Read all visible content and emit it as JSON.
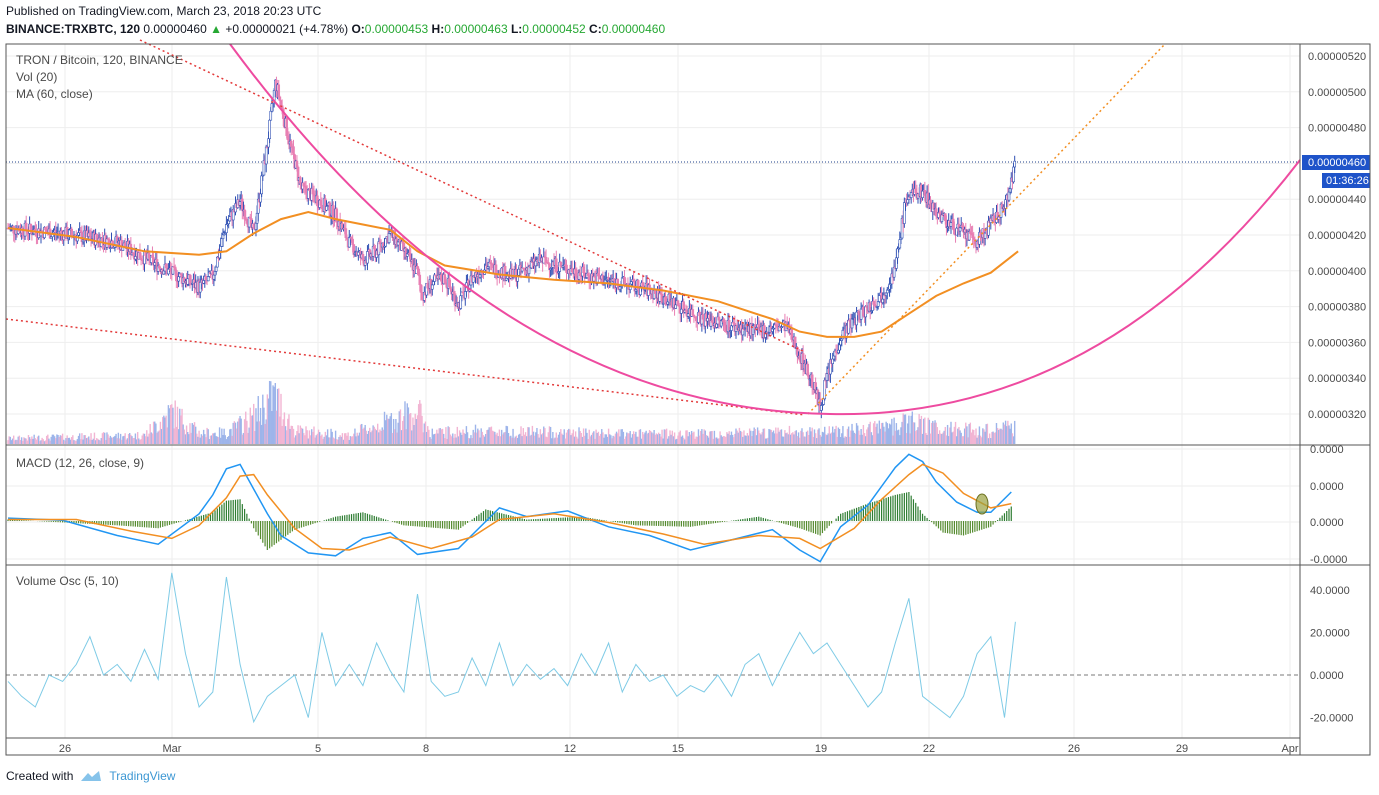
{
  "header": {
    "published": "Published on TradingView.com, March 23, 2018 20:23 UTC",
    "symbol": "BINANCE:TRXBTC, 120",
    "last": "0.00000460",
    "arrow": "▲",
    "change": "+0.00000021 (+4.78%)",
    "o_label": "O:",
    "o_value": "0.00000453",
    "h_label": "H:",
    "h_value": "0.00000463",
    "l_label": "L:",
    "l_value": "0.00000452",
    "c_label": "C:",
    "c_value": "0.00000460"
  },
  "footer": {
    "created_with": "Created with",
    "brand": "TradingView"
  },
  "chart_data": [
    {
      "type": "candlestick",
      "title": "TRON / Bitcoin, 120, BINANCE",
      "legend": [
        "Vol (20)",
        "MA (60, close)"
      ],
      "y_ticks": [
        "0.00000520",
        "0.00000500",
        "0.00000480",
        "0.00000460",
        "0.00000440",
        "0.00000420",
        "0.00000400",
        "0.00000380",
        "0.00000360",
        "0.00000340",
        "0.00000320"
      ],
      "ylim": [
        3.06e-06,
        5.28e-06
      ],
      "x_ticks": [
        "26",
        "Mar",
        "5",
        "8",
        "12",
        "15",
        "19",
        "22",
        "26",
        "29",
        "Apr"
      ],
      "price_label": "0.00000460",
      "countdown_label": "01:36:26",
      "last_price": 4.6e-06,
      "price_path": [
        [
          0,
          423
        ],
        [
          4,
          420
        ],
        [
          8,
          415
        ],
        [
          11,
          402
        ],
        [
          14,
          390
        ],
        [
          15,
          396
        ],
        [
          16,
          425
        ],
        [
          17,
          438
        ],
        [
          18,
          420
        ],
        [
          19,
          470
        ],
        [
          19.6,
          505
        ],
        [
          20.5,
          475
        ],
        [
          21.5,
          445
        ],
        [
          22.5,
          440
        ],
        [
          24,
          430
        ],
        [
          25,
          415
        ],
        [
          26,
          405
        ],
        [
          27,
          410
        ],
        [
          28,
          420
        ],
        [
          29,
          410
        ],
        [
          30,
          398
        ],
        [
          30.3,
          385
        ],
        [
          31,
          392
        ],
        [
          32,
          395
        ],
        [
          33,
          380
        ],
        [
          34,
          395
        ],
        [
          35,
          402
        ],
        [
          37,
          396
        ],
        [
          39,
          405
        ],
        [
          41,
          400
        ],
        [
          43,
          395
        ],
        [
          45,
          392
        ],
        [
          47,
          388
        ],
        [
          49,
          380
        ],
        [
          51,
          372
        ],
        [
          53,
          368
        ],
        [
          55,
          365
        ],
        [
          57,
          368
        ],
        [
          58,
          352
        ],
        [
          59,
          335
        ],
        [
          59.5,
          322
        ],
        [
          60,
          340
        ],
        [
          61,
          362
        ],
        [
          62,
          372
        ],
        [
          64,
          385
        ],
        [
          65,
          400
        ],
        [
          65.8,
          440
        ],
        [
          67,
          444
        ],
        [
          68,
          432
        ],
        [
          69,
          425
        ],
        [
          70,
          420
        ],
        [
          71,
          415
        ],
        [
          72,
          425
        ],
        [
          73,
          435
        ],
        [
          73.8,
          458
        ]
      ],
      "ma60_path": [
        [
          0,
          423
        ],
        [
          5,
          418
        ],
        [
          10,
          410
        ],
        [
          14,
          408
        ],
        [
          16,
          410
        ],
        [
          18,
          420
        ],
        [
          20,
          428
        ],
        [
          22,
          432
        ],
        [
          24,
          428
        ],
        [
          26,
          425
        ],
        [
          28,
          422
        ],
        [
          30,
          410
        ],
        [
          32,
          402
        ],
        [
          36,
          397
        ],
        [
          40,
          394
        ],
        [
          44,
          392
        ],
        [
          48,
          388
        ],
        [
          52,
          382
        ],
        [
          56,
          372
        ],
        [
          58,
          365
        ],
        [
          60,
          362
        ],
        [
          62,
          362
        ],
        [
          64,
          365
        ],
        [
          66,
          375
        ],
        [
          68,
          385
        ],
        [
          70,
          392
        ],
        [
          72,
          398
        ],
        [
          74,
          410
        ]
      ],
      "volume_path": [
        [
          0,
          0.5
        ],
        [
          10,
          0.8
        ],
        [
          12,
          3
        ],
        [
          14,
          1
        ],
        [
          16,
          1
        ],
        [
          18,
          2.5
        ],
        [
          19.5,
          4.5
        ],
        [
          21,
          1.2
        ],
        [
          25,
          0.8
        ],
        [
          30,
          3
        ],
        [
          31,
          1
        ],
        [
          35,
          1.2
        ],
        [
          45,
          0.9
        ],
        [
          55,
          1
        ],
        [
          60,
          1.2
        ],
        [
          63,
          1.3
        ],
        [
          66,
          2
        ],
        [
          68,
          1.5
        ],
        [
          72,
          1.2
        ],
        [
          74,
          1.6
        ]
      ]
    },
    {
      "type": "line",
      "title": "MACD (12, 26, close, 9)",
      "y_ticks": [
        "0.0000",
        "0.0000",
        "0.0000",
        "-0.0000"
      ],
      "macd": [
        [
          0,
          0.2
        ],
        [
          4,
          0.05
        ],
        [
          8,
          -1
        ],
        [
          11,
          -1.6
        ],
        [
          14,
          0.5
        ],
        [
          15,
          1.8
        ],
        [
          16,
          3.6
        ],
        [
          17,
          3.9
        ],
        [
          18,
          2.2
        ],
        [
          19,
          0.5
        ],
        [
          20,
          -1
        ],
        [
          22,
          -2.2
        ],
        [
          24,
          -2.4
        ],
        [
          26,
          -1.2
        ],
        [
          28,
          -0.8
        ],
        [
          30,
          -2.3
        ],
        [
          33,
          -1.9
        ],
        [
          36,
          0.9
        ],
        [
          38,
          0.3
        ],
        [
          41,
          0.7
        ],
        [
          44,
          -0.4
        ],
        [
          47,
          -1
        ],
        [
          50,
          -2
        ],
        [
          53,
          -1.3
        ],
        [
          56,
          -0.6
        ],
        [
          58,
          -2
        ],
        [
          59.5,
          -2.8
        ],
        [
          61,
          -0.4
        ],
        [
          63,
          1.1
        ],
        [
          65,
          3.7
        ],
        [
          66,
          4.6
        ],
        [
          67,
          4.1
        ],
        [
          68,
          2.7
        ],
        [
          69.5,
          1.3
        ],
        [
          71,
          0.6
        ],
        [
          72,
          0.6
        ],
        [
          73.5,
          2
        ]
      ],
      "signal": [
        [
          0,
          0.1
        ],
        [
          5,
          0.1
        ],
        [
          9,
          -0.7
        ],
        [
          12,
          -1.2
        ],
        [
          14,
          -0.3
        ],
        [
          16,
          1.6
        ],
        [
          17,
          3.1
        ],
        [
          18,
          3.2
        ],
        [
          19,
          1.8
        ],
        [
          21,
          -0.5
        ],
        [
          23,
          -1.9
        ],
        [
          25,
          -2
        ],
        [
          28,
          -1.1
        ],
        [
          31,
          -1.9
        ],
        [
          34,
          -1.1
        ],
        [
          36,
          0.1
        ],
        [
          40,
          0.5
        ],
        [
          44,
          -0.1
        ],
        [
          48,
          -0.9
        ],
        [
          51,
          -1.6
        ],
        [
          55,
          -1
        ],
        [
          58,
          -1.2
        ],
        [
          59.5,
          -1.9
        ],
        [
          62,
          -0.5
        ],
        [
          64,
          1.5
        ],
        [
          66,
          3.2
        ],
        [
          67,
          3.9
        ],
        [
          68.5,
          3.3
        ],
        [
          70,
          1.9
        ],
        [
          72,
          0.9
        ],
        [
          73.5,
          1.2
        ]
      ],
      "histogram": [
        [
          0,
          0.1
        ],
        [
          8,
          -0.3
        ],
        [
          11,
          -0.5
        ],
        [
          15,
          0.6
        ],
        [
          16,
          1.4
        ],
        [
          17,
          1.5
        ],
        [
          18,
          -0.5
        ],
        [
          19,
          -2
        ],
        [
          21,
          -0.6
        ],
        [
          24,
          0.3
        ],
        [
          26,
          0.6
        ],
        [
          29,
          -0.3
        ],
        [
          33,
          -0.6
        ],
        [
          35,
          0.8
        ],
        [
          38,
          0.1
        ],
        [
          42,
          0.3
        ],
        [
          46,
          -0.3
        ],
        [
          50,
          -0.4
        ],
        [
          55,
          0.3
        ],
        [
          58,
          -0.5
        ],
        [
          59.5,
          -1
        ],
        [
          61,
          0.5
        ],
        [
          63,
          1.2
        ],
        [
          65,
          1.8
        ],
        [
          66,
          2
        ],
        [
          67,
          0.5
        ],
        [
          68.5,
          -0.8
        ],
        [
          70,
          -1
        ],
        [
          72,
          -0.4
        ],
        [
          73.5,
          1
        ]
      ]
    },
    {
      "type": "line",
      "title": "Volume Osc (5, 10)",
      "y_ticks": [
        "40.0000",
        "20.0000",
        "0.0000",
        "-20.0000"
      ],
      "ylim": [
        -25,
        48
      ],
      "values": [
        [
          0,
          -3
        ],
        [
          1,
          -10
        ],
        [
          2,
          -15
        ],
        [
          3,
          0
        ],
        [
          4,
          -3
        ],
        [
          5,
          5
        ],
        [
          6,
          18
        ],
        [
          7,
          0
        ],
        [
          8,
          5
        ],
        [
          9,
          -3
        ],
        [
          10,
          12
        ],
        [
          11,
          -2
        ],
        [
          12,
          48
        ],
        [
          13,
          10
        ],
        [
          14,
          -15
        ],
        [
          15,
          -8
        ],
        [
          16,
          46
        ],
        [
          17,
          5
        ],
        [
          18,
          -22
        ],
        [
          19,
          -10
        ],
        [
          20,
          -5
        ],
        [
          21,
          0
        ],
        [
          22,
          -20
        ],
        [
          23,
          20
        ],
        [
          24,
          -5
        ],
        [
          25,
          5
        ],
        [
          26,
          -5
        ],
        [
          27,
          15
        ],
        [
          28,
          2
        ],
        [
          29,
          -8
        ],
        [
          30,
          38
        ],
        [
          31,
          -3
        ],
        [
          32,
          -10
        ],
        [
          33,
          -8
        ],
        [
          34,
          8
        ],
        [
          35,
          -5
        ],
        [
          36,
          15
        ],
        [
          37,
          -5
        ],
        [
          38,
          5
        ],
        [
          39,
          -2
        ],
        [
          40,
          3
        ],
        [
          41,
          -5
        ],
        [
          42,
          10
        ],
        [
          43,
          0
        ],
        [
          44,
          15
        ],
        [
          45,
          -8
        ],
        [
          46,
          5
        ],
        [
          47,
          -3
        ],
        [
          48,
          0
        ],
        [
          49,
          -10
        ],
        [
          50,
          -5
        ],
        [
          51,
          -8
        ],
        [
          52,
          0
        ],
        [
          53,
          -10
        ],
        [
          54,
          5
        ],
        [
          55,
          10
        ],
        [
          56,
          -5
        ],
        [
          57,
          8
        ],
        [
          58,
          20
        ],
        [
          59,
          10
        ],
        [
          60,
          15
        ],
        [
          61,
          5
        ],
        [
          62,
          -5
        ],
        [
          63,
          -15
        ],
        [
          64,
          -8
        ],
        [
          65,
          15
        ],
        [
          66,
          36
        ],
        [
          67,
          -10
        ],
        [
          68,
          -15
        ],
        [
          69,
          -20
        ],
        [
          70,
          -10
        ],
        [
          71,
          10
        ],
        [
          72,
          18
        ],
        [
          73,
          -20
        ],
        [
          73.8,
          25
        ]
      ]
    }
  ]
}
